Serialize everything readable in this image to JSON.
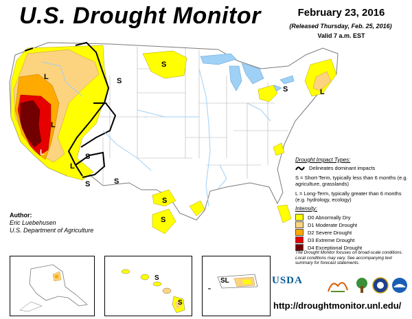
{
  "header": {
    "title": "U.S. Drought Monitor",
    "date": "February 23, 2016",
    "released": "(Released Thursday, Feb. 25, 2016)",
    "valid": "Valid 7 a.m. EST"
  },
  "author": {
    "heading": "Author:",
    "name": "Eric Luebehusen",
    "org": "U.S. Department of Agriculture"
  },
  "legend": {
    "impact_heading": "Drought Impact Types:",
    "delineates": "Delineates dominant impacts",
    "short_term": "S = Short-Term, typically less than 6 months (e.g. agriculture, grasslands)",
    "long_term": "L = Long-Term, typically greater than 6 months (e.g. hydrology, ecology)",
    "intensity_heading": "Intensity:",
    "categories": [
      {
        "label": "D0 Abnormally Dry",
        "color": "#ffff00"
      },
      {
        "label": "D1 Moderate Drought",
        "color": "#fcd37f"
      },
      {
        "label": "D2 Severe Drought",
        "color": "#ffaa00"
      },
      {
        "label": "D3 Extreme Drought",
        "color": "#e60000"
      },
      {
        "label": "D4 Exceptional Drought",
        "color": "#730000"
      }
    ]
  },
  "focus_note": "The Drought Monitor focuses on broad-scale conditions. Local conditions may vary. See accompanying text summary for forecast statements.",
  "impact_labels": {
    "S": "S",
    "L": "L",
    "SL": "SL"
  },
  "logos": {
    "usda": "USDA"
  },
  "url": "http://droughtmonitor.unl.edu/",
  "colors": {
    "water": "#9fd0f5",
    "border": "#9a9a9a",
    "d0": "#ffff00",
    "d1": "#fcd37f",
    "d2": "#ffaa00",
    "d3": "#e60000",
    "d4": "#730000"
  }
}
